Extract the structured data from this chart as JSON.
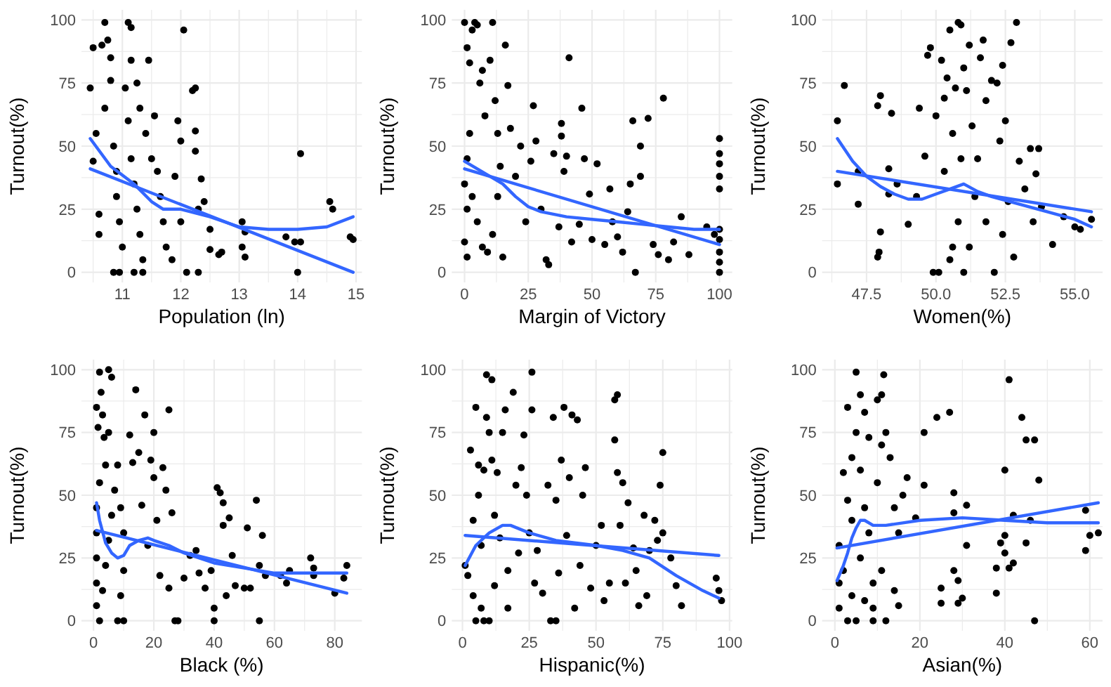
{
  "chart_data": [
    {
      "type": "scatter",
      "xlabel": "Population (ln)",
      "ylabel": "Turnout(%)",
      "xlim": [
        10.3,
        15.1
      ],
      "xticks": [
        {
          "value": 10.5,
          "label": null
        },
        11,
        {
          "value": 11.5,
          "label": null
        },
        12,
        {
          "value": 12.5,
          "label": null
        },
        13,
        {
          "value": 13.5,
          "label": null
        },
        14,
        {
          "value": 14.5,
          "label": null
        },
        15
      ],
      "ylim": [
        -4,
        104
      ],
      "yticks": [
        0,
        {
          "value": 12.5,
          "label": null
        },
        25,
        {
          "value": 37.5,
          "label": null
        },
        50,
        {
          "value": 62.5,
          "label": null
        },
        75,
        {
          "value": 87.5,
          "label": null
        },
        100
      ],
      "grid": true,
      "series": [
        {
          "type": "scatter",
          "marker": "circle",
          "color": "#000000",
          "x": [
            10.45,
            10.5,
            10.5,
            10.55,
            10.6,
            10.6,
            10.65,
            10.7,
            10.75,
            10.7,
            10.8,
            10.8,
            10.85,
            10.9,
            10.9,
            10.95,
            11,
            10.85,
            10.95,
            11.1,
            11.15,
            11.05,
            11.1,
            11.15,
            11.2,
            11.25,
            11.3,
            11.35,
            11.2,
            11.35,
            11.15,
            11.25,
            11.3,
            11.4,
            11.45,
            11.5,
            11.55,
            11.6,
            11.65,
            11.7,
            11.75,
            11.85,
            11.9,
            11.95,
            12,
            12.05,
            12,
            12.1,
            12.2,
            12.25,
            12.25,
            12.25,
            12.3,
            12.3,
            12.35,
            12.4,
            12.5,
            12.5,
            12.7,
            12.65,
            13.05,
            13.1,
            13.05,
            13.1,
            13.8,
            13.95,
            14,
            14.05,
            14.05,
            14.55,
            14.6,
            14.9,
            14.95
          ],
          "values": [
            73,
            89,
            44,
            55,
            23,
            15,
            90,
            99,
            92,
            65,
            85,
            76,
            50,
            40,
            30,
            20,
            10,
            0,
            0,
            99,
            97,
            73,
            60,
            45,
            35,
            25,
            15,
            5,
            0,
            0,
            84,
            75,
            65,
            55,
            84,
            45,
            62,
            40,
            30,
            20,
            10,
            5,
            38,
            60,
            52,
            96,
            20,
            0,
            72,
            73,
            56,
            48,
            25,
            0,
            37,
            28,
            17,
            9,
            8,
            7,
            20,
            16,
            10,
            6,
            14,
            12,
            0,
            12,
            47,
            28,
            25,
            14,
            13
          ]
        },
        {
          "type": "line",
          "color": "#3366ff",
          "x": [
            10.45,
            10.8,
            11.2,
            11.5,
            11.7,
            12,
            12.5,
            13,
            13.5,
            14,
            14.5,
            14.95
          ],
          "values": [
            53,
            42,
            35,
            28,
            25,
            25,
            22,
            18,
            17,
            17,
            18,
            22
          ]
        },
        {
          "type": "line",
          "color": "#3366ff",
          "x": [
            10.45,
            14.95
          ],
          "values": [
            41,
            0
          ]
        }
      ]
    },
    {
      "type": "scatter",
      "xlabel": "Margin of Victory",
      "ylabel": "Turnout(%)",
      "xlim": [
        -5,
        105
      ],
      "xticks": [
        0,
        {
          "value": 12.5,
          "label": null
        },
        25,
        {
          "value": 37.5,
          "label": null
        },
        50,
        {
          "value": 62.5,
          "label": null
        },
        75,
        {
          "value": 87.5,
          "label": null
        },
        100
      ],
      "ylim": [
        -4,
        104
      ],
      "yticks": [
        0,
        {
          "value": 12.5,
          "label": null
        },
        25,
        {
          "value": 37.5,
          "label": null
        },
        50,
        {
          "value": 62.5,
          "label": null
        },
        75,
        {
          "value": 87.5,
          "label": null
        },
        100
      ],
      "grid": true,
      "series": [
        {
          "type": "scatter",
          "marker": "circle",
          "color": "#000000",
          "x": [
            0,
            1,
            2,
            3,
            4,
            5,
            6,
            7,
            8,
            10,
            11,
            12,
            13,
            14,
            15,
            16,
            17,
            18,
            2,
            1,
            0,
            1,
            0,
            1,
            3,
            5,
            7,
            9,
            11,
            13,
            20,
            22,
            24,
            26,
            27,
            28,
            30,
            32,
            33,
            35,
            37,
            38,
            38,
            39,
            40,
            41,
            42,
            45,
            46,
            47,
            49,
            52,
            55,
            57,
            60,
            62,
            64,
            65,
            66,
            67,
            69,
            69,
            72,
            74,
            76,
            78,
            80,
            82,
            85,
            88,
            95,
            100,
            100,
            100,
            100,
            100,
            100,
            100,
            100,
            100,
            100,
            98,
            58,
            50
          ],
          "values": [
            99,
            89,
            83,
            96,
            99,
            98,
            75,
            80,
            62,
            84,
            99,
            68,
            55,
            42,
            6,
            90,
            74,
            57,
            55,
            45,
            35,
            25,
            12,
            6,
            30,
            20,
            10,
            8,
            15,
            30,
            38,
            50,
            20,
            44,
            66,
            52,
            25,
            5,
            3,
            47,
            18,
            59,
            54,
            40,
            46,
            85,
            12,
            19,
            65,
            45,
            31,
            43,
            11,
            33,
            14,
            8,
            24,
            35,
            60,
            0,
            38,
            50,
            61,
            11,
            7,
            69,
            5,
            12,
            22,
            7,
            18,
            53,
            47,
            43,
            38,
            33,
            17,
            13,
            8,
            4,
            0,
            15,
            20,
            13
          ]
        },
        {
          "type": "line",
          "color": "#3366ff",
          "x": [
            0,
            5,
            10,
            15,
            20,
            25,
            30,
            40,
            50,
            60,
            70,
            80,
            90,
            100
          ],
          "values": [
            44,
            41,
            38,
            35,
            30,
            26,
            24,
            22,
            21,
            20,
            19,
            18,
            17,
            17
          ]
        },
        {
          "type": "line",
          "color": "#3366ff",
          "x": [
            0,
            100
          ],
          "values": [
            41,
            11
          ]
        }
      ]
    },
    {
      "type": "scatter",
      "xlabel": "Women(%)",
      "ylabel": "Turnout(%)",
      "xlim": [
        45.9,
        56
      ],
      "xticks": [
        {
          "value": 46.25,
          "label": null
        },
        {
          "value": 47.5,
          "label": "47.5"
        },
        {
          "value": 48.75,
          "label": null
        },
        {
          "value": 50,
          "label": "50.0"
        },
        {
          "value": 51.25,
          "label": null
        },
        {
          "value": 52.5,
          "label": "52.5"
        },
        {
          "value": 53.75,
          "label": null
        },
        {
          "value": 55,
          "label": "55.0"
        }
      ],
      "ylim": [
        -4,
        104
      ],
      "yticks": [
        0,
        {
          "value": 12.5,
          "label": null
        },
        25,
        {
          "value": 37.5,
          "label": null
        },
        50,
        {
          "value": 62.5,
          "label": null
        },
        75,
        {
          "value": 87.5,
          "label": null
        },
        100
      ],
      "grid": true,
      "series": [
        {
          "type": "scatter",
          "marker": "circle",
          "color": "#000000",
          "x": [
            46.45,
            46.45,
            46.7,
            47.2,
            47.2,
            47.9,
            48,
            48.4,
            48.3,
            48.3,
            48,
            47.95,
            47.9,
            48.6,
            49,
            49.3,
            49.4,
            49.6,
            49.7,
            49.8,
            49.9,
            50,
            50.1,
            50.2,
            50.3,
            50.3,
            50.4,
            50.5,
            50.6,
            50.7,
            50.8,
            50.9,
            51,
            51.1,
            51.2,
            50.9,
            50.8,
            50.6,
            50.5,
            51,
            51.3,
            51.5,
            51.6,
            51.7,
            51.8,
            52,
            52.2,
            52.4,
            52.3,
            52.5,
            52.7,
            52.9,
            52.6,
            52.4,
            52.1,
            52.8,
            53,
            53.2,
            53.4,
            53.6,
            53.7,
            53.5,
            53.8,
            54.2,
            54.6,
            55,
            55.2,
            55.6,
            51.4,
            51.8,
            51.2
          ],
          "values": [
            60,
            35,
            74,
            40,
            27,
            66,
            70,
            63,
            41,
            31,
            16,
            8,
            6,
            35,
            19,
            30,
            65,
            46,
            86,
            89,
            0,
            62,
            0,
            84,
            69,
            40,
            77,
            96,
            55,
            73,
            99,
            98,
            81,
            72,
            90,
            45,
            20,
            10,
            5,
            0,
            58,
            45,
            85,
            92,
            68,
            76,
            75,
            82,
            52,
            60,
            91,
            99,
            28,
            15,
            0,
            6,
            44,
            33,
            49,
            39,
            49,
            20,
            26,
            11,
            22,
            18,
            17,
            21,
            30,
            20,
            10
          ]
        },
        {
          "type": "line",
          "color": "#3366ff",
          "x": [
            46.45,
            47,
            47.5,
            48,
            48.5,
            49,
            49.5,
            50,
            50.5,
            51,
            51.5,
            52,
            53,
            54,
            55,
            55.6
          ],
          "values": [
            53,
            44,
            38,
            34,
            31,
            29,
            29,
            31,
            33,
            35,
            32,
            30,
            27,
            24,
            21,
            18
          ]
        },
        {
          "type": "line",
          "color": "#3366ff",
          "x": [
            46.45,
            55.6
          ],
          "values": [
            40,
            24
          ]
        }
      ]
    },
    {
      "type": "scatter",
      "xlabel": "Black (%)",
      "ylabel": "Turnout(%)",
      "xlim": [
        -4,
        89
      ],
      "xticks": [
        0,
        {
          "value": 10,
          "label": null
        },
        20,
        {
          "value": 30,
          "label": null
        },
        40,
        {
          "value": 50,
          "label": null
        },
        60,
        {
          "value": 70,
          "label": null
        },
        80
      ],
      "ylim": [
        -4,
        104
      ],
      "yticks": [
        0,
        {
          "value": 12.5,
          "label": null
        },
        25,
        {
          "value": 37.5,
          "label": null
        },
        50,
        {
          "value": 62.5,
          "label": null
        },
        75,
        {
          "value": 87.5,
          "label": null
        },
        100
      ],
      "grid": true,
      "series": [
        {
          "type": "scatter",
          "marker": "circle",
          "color": "#000000",
          "x": [
            1,
            1.5,
            2,
            2.5,
            3,
            3.5,
            4,
            5,
            6,
            5,
            2,
            1,
            1,
            1,
            1,
            1,
            2,
            3,
            4,
            5,
            6,
            7,
            8,
            9,
            10,
            10,
            9,
            8,
            10,
            12,
            13,
            14,
            15,
            16,
            17,
            18,
            19,
            20,
            20,
            21,
            22,
            23,
            24,
            25,
            26,
            25,
            27,
            28,
            30,
            32,
            34,
            35,
            37,
            39,
            40,
            40,
            41,
            42,
            43,
            43,
            44,
            45,
            46,
            47,
            50,
            51,
            52,
            54,
            55,
            55,
            56,
            57,
            62,
            64,
            65,
            72,
            73,
            73,
            80,
            83,
            84
          ],
          "values": [
            85,
            77,
            99,
            91,
            82,
            73,
            62,
            100,
            97,
            75,
            55,
            45,
            35,
            25,
            15,
            6,
            0,
            12,
            22,
            32,
            42,
            52,
            62,
            45,
            35,
            20,
            10,
            0,
            0,
            74,
            63,
            92,
            67,
            46,
            82,
            30,
            64,
            57,
            75,
            40,
            18,
            61,
            52,
            84,
            43,
            13,
            0,
            0,
            17,
            26,
            28,
            19,
            13,
            20,
            5,
            0,
            53,
            51,
            47,
            38,
            10,
            41,
            26,
            14,
            13,
            37,
            13,
            48,
            22,
            0,
            34,
            18,
            18,
            15,
            20,
            25,
            21,
            18,
            11,
            17,
            22
          ]
        },
        {
          "type": "line",
          "color": "#3366ff",
          "x": [
            1,
            2,
            4,
            6,
            8,
            10,
            12,
            15,
            18,
            20,
            25,
            30,
            40,
            50,
            60,
            70,
            80,
            84
          ],
          "values": [
            47,
            40,
            31,
            27,
            25,
            26,
            30,
            32,
            33,
            32,
            30,
            27,
            23,
            21,
            19,
            19,
            19,
            19
          ]
        },
        {
          "type": "line",
          "color": "#3366ff",
          "x": [
            1,
            84
          ],
          "values": [
            36,
            11
          ]
        }
      ]
    },
    {
      "type": "scatter",
      "xlabel": "Hispanic(%)",
      "ylabel": "Turnout(%)",
      "xlim": [
        -4,
        101
      ],
      "xticks": [
        0,
        {
          "value": 12.5,
          "label": null
        },
        25,
        {
          "value": 37.5,
          "label": null
        },
        50,
        {
          "value": 62.5,
          "label": null
        },
        75,
        {
          "value": 87.5,
          "label": null
        },
        100
      ],
      "ylim": [
        -4,
        104
      ],
      "yticks": [
        0,
        {
          "value": 12.5,
          "label": null
        },
        25,
        {
          "value": 37.5,
          "label": null
        },
        50,
        {
          "value": 62.5,
          "label": null
        },
        75,
        {
          "value": 87.5,
          "label": null
        },
        100
      ],
      "grid": true,
      "series": [
        {
          "type": "scatter",
          "marker": "circle",
          "color": "#000000",
          "x": [
            1,
            2,
            3,
            4,
            4,
            5,
            5,
            6,
            6,
            7,
            7,
            8,
            8,
            9,
            9,
            10,
            10,
            11,
            11,
            12,
            12,
            13,
            14,
            15,
            16,
            17,
            17,
            19,
            20,
            21,
            22,
            23,
            24,
            25,
            26,
            26,
            27,
            28,
            30,
            32,
            33,
            34,
            35,
            35,
            36,
            37,
            38,
            39,
            40,
            41,
            42,
            43,
            44,
            45,
            46,
            48,
            50,
            52,
            53,
            55,
            57,
            57,
            58,
            58,
            59,
            60,
            61,
            62,
            64,
            65,
            66,
            68,
            69,
            70,
            72,
            73,
            74,
            75,
            75,
            78,
            80,
            82,
            95,
            96,
            97
          ],
          "values": [
            22,
            18,
            68,
            40,
            10,
            85,
            0,
            62,
            50,
            30,
            5,
            60,
            0,
            98,
            81,
            75,
            0,
            96,
            64,
            42,
            14,
            59,
            33,
            75,
            84,
            5,
            20,
            91,
            54,
            27,
            61,
            74,
            50,
            35,
            84,
            99,
            15,
            28,
            11,
            54,
            0,
            81,
            0,
            48,
            19,
            64,
            85,
            34,
            57,
            82,
            5,
            80,
            22,
            50,
            61,
            13,
            30,
            38,
            8,
            15,
            88,
            72,
            90,
            59,
            38,
            55,
            15,
            47,
            29,
            20,
            6,
            42,
            10,
            28,
            40,
            32,
            54,
            67,
            35,
            25,
            14,
            6,
            17,
            12,
            8
          ]
        },
        {
          "type": "line",
          "color": "#3366ff",
          "x": [
            1,
            5,
            10,
            15,
            18,
            25,
            35,
            50,
            60,
            70,
            80,
            90,
            96
          ],
          "values": [
            22,
            30,
            35,
            38,
            38,
            35,
            32,
            30,
            28,
            25,
            18,
            12,
            9
          ]
        },
        {
          "type": "line",
          "color": "#3366ff",
          "x": [
            1,
            96
          ],
          "values": [
            34,
            26
          ]
        }
      ]
    },
    {
      "type": "scatter",
      "xlabel": "Asian(%)",
      "ylabel": "Turnout(%)",
      "xlim": [
        -3,
        63
      ],
      "xticks": [
        0,
        {
          "value": 10,
          "label": null
        },
        20,
        {
          "value": 30,
          "label": null
        },
        40,
        {
          "value": 50,
          "label": null
        },
        60
      ],
      "ylim": [
        -4,
        104
      ],
      "yticks": [
        0,
        {
          "value": 12.5,
          "label": null
        },
        25,
        {
          "value": 37.5,
          "label": null
        },
        50,
        {
          "value": 62.5,
          "label": null
        },
        75,
        {
          "value": 87.5,
          "label": null
        },
        100
      ],
      "grid": true,
      "series": [
        {
          "type": "scatter",
          "marker": "circle",
          "color": "#000000",
          "x": [
            1,
            1,
            1,
            2,
            2,
            3,
            3,
            3,
            4,
            4,
            4,
            5,
            5,
            5,
            6,
            6,
            6,
            7,
            7,
            7,
            8,
            8,
            9,
            9,
            9,
            10,
            10,
            11,
            11,
            11,
            11.5,
            12,
            12,
            13,
            14,
            14,
            15,
            15,
            16,
            17,
            19,
            21,
            21,
            24,
            25,
            25,
            27,
            28,
            28,
            28,
            29,
            29,
            30,
            31,
            31,
            38,
            38,
            39,
            40,
            40,
            40,
            41,
            41,
            42,
            42,
            44,
            45,
            45,
            46,
            47,
            47,
            48,
            59,
            59,
            60,
            62
          ],
          "values": [
            30,
            15,
            5,
            59,
            20,
            85,
            0,
            48,
            65,
            40,
            10,
            99,
            75,
            0,
            90,
            60,
            25,
            83,
            45,
            8,
            73,
            35,
            5,
            15,
            0,
            88,
            55,
            70,
            20,
            90,
            98,
            75,
            0,
            65,
            45,
            12,
            6,
            35,
            50,
            57,
            41,
            75,
            54,
            81,
            13,
            7,
            83,
            51,
            43,
            20,
            16,
            7,
            9,
            46,
            30,
            11,
            21,
            31,
            60,
            34,
            27,
            96,
            21,
            42,
            23,
            81,
            72,
            31,
            40,
            72,
            0,
            56,
            44,
            28,
            34,
            35
          ]
        },
        {
          "type": "line",
          "color": "#3366ff",
          "x": [
            0.5,
            2,
            3,
            4,
            5,
            6,
            7,
            9,
            12,
            16,
            20,
            30,
            40,
            50,
            62
          ],
          "values": [
            16,
            22,
            27,
            33,
            37,
            40,
            40,
            38,
            38,
            39,
            40,
            41,
            40,
            39,
            39
          ]
        },
        {
          "type": "line",
          "color": "#3366ff",
          "x": [
            0.5,
            62
          ],
          "values": [
            29,
            47
          ]
        }
      ]
    }
  ]
}
